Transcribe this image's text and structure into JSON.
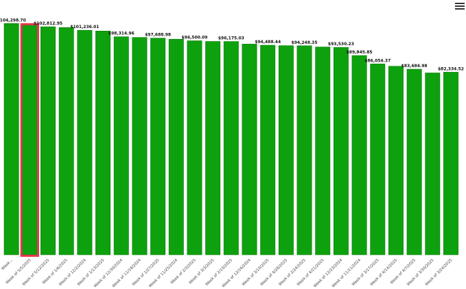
{
  "chart_data": {
    "type": "bar",
    "categories": [
      "Week...",
      "Week of 5/5/2025",
      "Week of 5/12/2025",
      "Week of 1/6/2025",
      "Week of 12/2/2024",
      "Week of 1/13/2025",
      "Week of 12/30/2024",
      "Week of 11/18/2024",
      "Week of 1/27/2025",
      "Week of 11/25/2024",
      "Week of 2/3/2025",
      "Week of 3/3/2025",
      "Week of 2/10/2025",
      "Week of 12/16/2024",
      "Week of 3/10/2025",
      "Week of 4/28/2025",
      "Week of 2/24/2025",
      "Week of 4/21/2025",
      "Week of 12/23/2024",
      "Week of 11/11/2024",
      "Week of 3/17/2025",
      "Week of 4/14/2025",
      "Week of 4/7/2025",
      "Week of 3/30/2025",
      "Week of 3/24/2025"
    ],
    "values": [
      104298.7,
      103500,
      102812.95,
      102500,
      101236.01,
      100900,
      98314.96,
      98000,
      97688.98,
      97200,
      96500.09,
      96200,
      96175.03,
      95000,
      94488.44,
      94300,
      94248.35,
      93700,
      93530.23,
      89845.85,
      86054.37,
      85000,
      83684.98,
      82000,
      82334.52
    ],
    "labels": [
      "$104,298.70",
      "",
      "$102,812.95",
      "",
      "$101,236.01",
      "",
      "$98,314.96",
      "",
      "$97,688.98",
      "",
      "$96,500.09",
      "",
      "$96,175.03",
      "",
      "$94,488.44",
      "",
      "$94,248.35",
      "",
      "$93,530.23",
      "$89,845.85",
      "$86,054.37",
      "",
      "$83,684.98",
      "",
      "$82,334.52"
    ],
    "highlighted_index": 1,
    "bar_color": "#0ea10e",
    "bar_stroke": "#0a7a0a",
    "highlight_color": "#e8384f",
    "ylim": [
      0,
      105000
    ],
    "grid": false,
    "title": "",
    "xlabel": "",
    "ylabel": ""
  },
  "menu": {
    "icon": "hamburger-menu-icon"
  }
}
